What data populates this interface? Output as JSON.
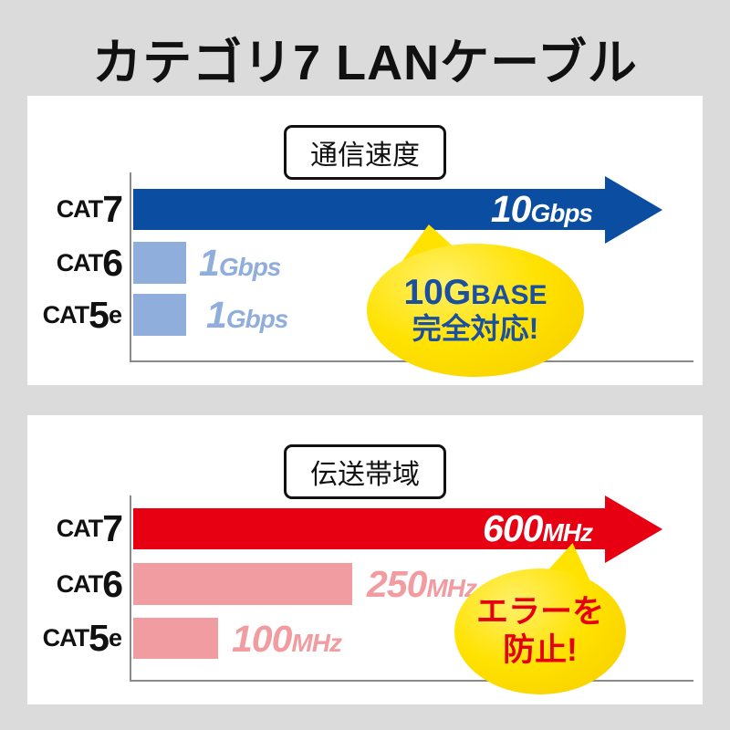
{
  "title": "カテゴリ7 LANケーブル",
  "colors": {
    "background": "#dbdbdb",
    "panel": "#ffffff",
    "speed_highlight_blue": "#0b4da0",
    "speed_normal_blue": "#8faedb",
    "band_highlight_red": "#e60012",
    "band_normal_pink": "#f19ca0",
    "bubble_yellow": "#ffe200",
    "bubble_text_blue": "#1b4fa0",
    "bubble_text_red": "#e60012",
    "axis_gray": "#8a8a8a"
  },
  "chart_data": [
    {
      "type": "bar",
      "orientation": "horizontal",
      "title": "通信速度",
      "categories": [
        "CAT7",
        "CAT6",
        "CAT5e"
      ],
      "values": [
        10,
        1,
        1
      ],
      "unit": "Gbps",
      "value_labels": [
        "10Gbps",
        "1Gbps",
        "1Gbps"
      ],
      "xlim": [
        0,
        10.5
      ],
      "grid": false,
      "highlight_category": "CAT7",
      "annotation": "10GBASE完全対応!"
    },
    {
      "type": "bar",
      "orientation": "horizontal",
      "title": "伝送帯域",
      "categories": [
        "CAT7",
        "CAT6",
        "CAT5e"
      ],
      "values": [
        600,
        250,
        100
      ],
      "unit": "MHz",
      "value_labels": [
        "600MHz",
        "250MHz",
        "100MHz"
      ],
      "xlim": [
        0,
        640
      ],
      "grid": false,
      "highlight_category": "CAT7",
      "annotation": "エラーを防止!"
    }
  ],
  "panels": [
    {
      "header": "通信速度",
      "rows": [
        {
          "cat": "CAT",
          "num": "7",
          "suffix": "",
          "val_big": "10",
          "val_unit": "Gbps"
        },
        {
          "cat": "CAT",
          "num": "6",
          "suffix": "",
          "val_big": "1",
          "val_unit": "Gbps"
        },
        {
          "cat": "CAT",
          "num": "5",
          "suffix": "e",
          "val_big": "1",
          "val_unit": "Gbps"
        }
      ],
      "bubble": {
        "l1a": "10G",
        "l1b": "BASE",
        "l2": "完全対応!"
      }
    },
    {
      "header": "伝送帯域",
      "rows": [
        {
          "cat": "CAT",
          "num": "7",
          "suffix": "",
          "val_big": "600",
          "val_unit": "MHz"
        },
        {
          "cat": "CAT",
          "num": "6",
          "suffix": "",
          "val_big": "250",
          "val_unit": "MHz"
        },
        {
          "cat": "CAT",
          "num": "5",
          "suffix": "e",
          "val_big": "100",
          "val_unit": "MHz"
        }
      ],
      "bubble": {
        "l1": "エラーを",
        "l2": "防止!"
      }
    }
  ]
}
